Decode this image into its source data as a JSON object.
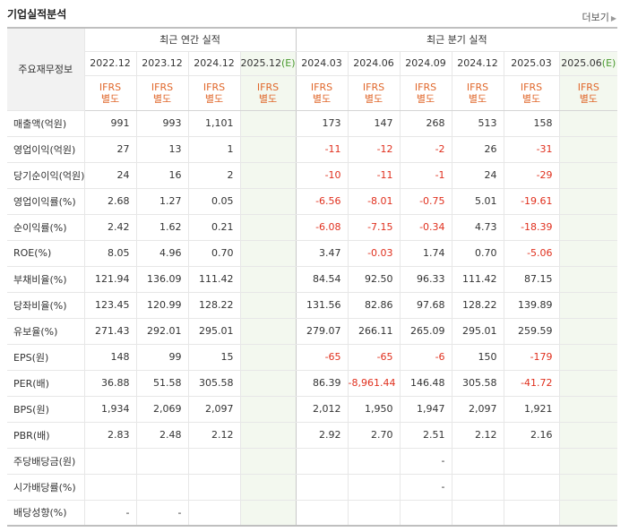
{
  "header": {
    "title": "기업실적분석",
    "more": "더보기"
  },
  "table": {
    "row_header_label": "주요재무정보",
    "annual_group": "최근 연간 실적",
    "quarter_group": "최근 분기 실적",
    "annual_years": [
      {
        "label": "2022.12",
        "est": ""
      },
      {
        "label": "2023.12",
        "est": ""
      },
      {
        "label": "2024.12",
        "est": ""
      },
      {
        "label": "2025.12",
        "est": "(E)"
      }
    ],
    "quarter_years": [
      {
        "label": "2024.03",
        "est": ""
      },
      {
        "label": "2024.06",
        "est": ""
      },
      {
        "label": "2024.09",
        "est": ""
      },
      {
        "label": "2024.12",
        "est": ""
      },
      {
        "label": "2025.03",
        "est": ""
      },
      {
        "label": "2025.06",
        "est": "(E)"
      }
    ],
    "ifrs_line1": "IFRS",
    "ifrs_line2": "별도",
    "rows": [
      {
        "label": "매출액(억원)",
        "values": [
          "991",
          "993",
          "1,101",
          "",
          "173",
          "147",
          "268",
          "513",
          "158",
          ""
        ]
      },
      {
        "label": "영업이익(억원)",
        "values": [
          "27",
          "13",
          "1",
          "",
          "-11",
          "-12",
          "-2",
          "26",
          "-31",
          ""
        ]
      },
      {
        "label": "당기순이익(억원)",
        "values": [
          "24",
          "16",
          "2",
          "",
          "-10",
          "-11",
          "-1",
          "24",
          "-29",
          ""
        ]
      },
      {
        "label": "영업이익률(%)",
        "values": [
          "2.68",
          "1.27",
          "0.05",
          "",
          "-6.56",
          "-8.01",
          "-0.75",
          "5.01",
          "-19.61",
          ""
        ]
      },
      {
        "label": "순이익률(%)",
        "values": [
          "2.42",
          "1.62",
          "0.21",
          "",
          "-6.08",
          "-7.15",
          "-0.34",
          "4.73",
          "-18.39",
          ""
        ]
      },
      {
        "label": "ROE(%)",
        "values": [
          "8.05",
          "4.96",
          "0.70",
          "",
          "3.47",
          "-0.03",
          "1.74",
          "0.70",
          "-5.06",
          ""
        ]
      },
      {
        "label": "부채비율(%)",
        "values": [
          "121.94",
          "136.09",
          "111.42",
          "",
          "84.54",
          "92.50",
          "96.33",
          "111.42",
          "87.15",
          ""
        ]
      },
      {
        "label": "당좌비율(%)",
        "values": [
          "123.45",
          "120.99",
          "128.22",
          "",
          "131.56",
          "82.86",
          "97.68",
          "128.22",
          "139.89",
          ""
        ]
      },
      {
        "label": "유보율(%)",
        "values": [
          "271.43",
          "292.01",
          "295.01",
          "",
          "279.07",
          "266.11",
          "265.09",
          "295.01",
          "259.59",
          ""
        ]
      },
      {
        "label": "EPS(원)",
        "values": [
          "148",
          "99",
          "15",
          "",
          "-65",
          "-65",
          "-6",
          "150",
          "-179",
          ""
        ]
      },
      {
        "label": "PER(배)",
        "values": [
          "36.88",
          "51.58",
          "305.58",
          "",
          "86.39",
          "-8,961.44",
          "146.48",
          "305.58",
          "-41.72",
          ""
        ]
      },
      {
        "label": "BPS(원)",
        "values": [
          "1,934",
          "2,069",
          "2,097",
          "",
          "2,012",
          "1,950",
          "1,947",
          "2,097",
          "1,921",
          ""
        ]
      },
      {
        "label": "PBR(배)",
        "values": [
          "2.83",
          "2.48",
          "2.12",
          "",
          "2.92",
          "2.70",
          "2.51",
          "2.12",
          "2.16",
          ""
        ]
      },
      {
        "label": "주당배당금(원)",
        "values": [
          "",
          "",
          "",
          "",
          "",
          "",
          "-",
          "",
          "",
          ""
        ]
      },
      {
        "label": "시가배당률(%)",
        "values": [
          "",
          "",
          "",
          "",
          "",
          "",
          "-",
          "",
          "",
          ""
        ]
      },
      {
        "label": "배당성향(%)",
        "values": [
          "-",
          "-",
          "",
          "",
          "",
          "",
          "",
          "",
          "",
          ""
        ]
      }
    ],
    "colors": {
      "negative": "#e0301e",
      "ifrs": "#e0672b",
      "estimate_bg": "#f3f8ef",
      "estimate_tag": "#4a9a2f"
    }
  }
}
